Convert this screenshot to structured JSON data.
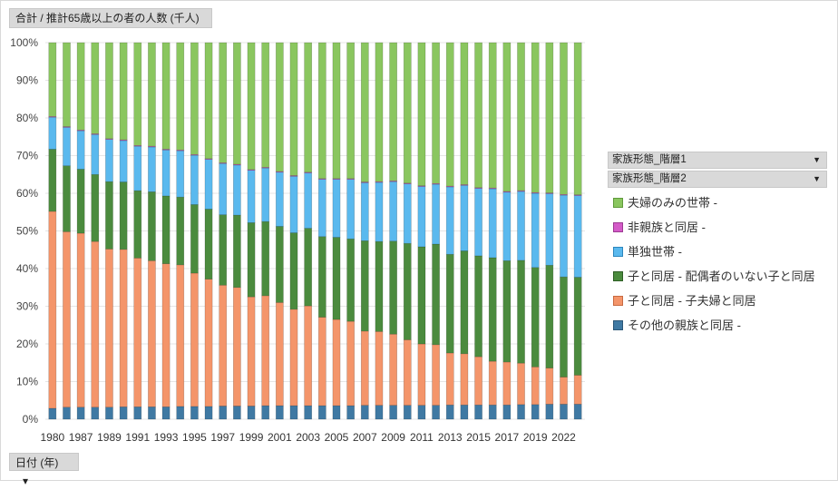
{
  "field_buttons": {
    "value": "合計 / 推計65歳以上の者の人数 (千人)",
    "date": "日付 (年)",
    "date_dropdown": "▾"
  },
  "legend": {
    "header1": "家族形態_階層1",
    "header2": "家族形態_階層2",
    "dropdown_glyph": "▼",
    "items": [
      {
        "label": "夫婦のみの世帯",
        "suffix": " -",
        "color": "#8ac65f",
        "border": "#5f9a3b"
      },
      {
        "label": "非親族と同居",
        "suffix": " -",
        "color": "#d45bc8",
        "border": "#9c3a92"
      },
      {
        "label": "単独世帯",
        "suffix": " -",
        "color": "#5ab9ee",
        "border": "#2c86bd"
      },
      {
        "label": "子と同居",
        "suffix": " - 配偶者のいない子と同居",
        "color": "#4b8b3e",
        "border": "#2e5e25"
      },
      {
        "label": "子と同居",
        "suffix": " - 子夫婦と同居",
        "color": "#f4956a",
        "border": "#c86a41"
      },
      {
        "label": "その他の親族と同居",
        "suffix": " -",
        "color": "#3f79a3",
        "border": "#2a5677"
      }
    ]
  },
  "chart_data": {
    "type": "bar",
    "stacked": true,
    "percent": true,
    "title": "",
    "xlabel": "",
    "ylabel": "",
    "ylim": [
      0,
      100
    ],
    "y_ticks": [
      "0%",
      "10%",
      "20%",
      "30%",
      "40%",
      "50%",
      "60%",
      "70%",
      "80%",
      "90%",
      "100%"
    ],
    "categories": [
      "1980",
      "1985",
      "1987",
      "1988",
      "1989",
      "1990",
      "1991",
      "1992",
      "1993",
      "1994",
      "1995",
      "1996",
      "1997",
      "1998",
      "1999",
      "2000",
      "2001",
      "2002",
      "2003",
      "2004",
      "2005",
      "2006",
      "2007",
      "2008",
      "2009",
      "2010",
      "2011",
      "2012",
      "2013",
      "2014",
      "2015",
      "2016",
      "2017",
      "2018",
      "2019",
      "2020",
      "2022",
      "2023"
    ],
    "tick_labels": [
      "1980",
      "1987",
      "1989",
      "1991",
      "1993",
      "1995",
      "1997",
      "1999",
      "2001",
      "2003",
      "2005",
      "2007",
      "2009",
      "2011",
      "2013",
      "2015",
      "2017",
      "2019",
      "2022"
    ],
    "tick_indices": [
      0,
      2,
      4,
      6,
      8,
      10,
      12,
      14,
      16,
      18,
      20,
      22,
      24,
      26,
      28,
      30,
      32,
      34,
      36
    ],
    "series": [
      {
        "name": "その他の親族と同居 -",
        "color": "#3f79a3",
        "values": [
          2.9,
          3.2,
          3.2,
          3.2,
          3.2,
          3.3,
          3.3,
          3.3,
          3.3,
          3.4,
          3.4,
          3.4,
          3.5,
          3.5,
          3.5,
          3.6,
          3.6,
          3.6,
          3.6,
          3.6,
          3.6,
          3.6,
          3.7,
          3.7,
          3.7,
          3.7,
          3.7,
          3.7,
          3.8,
          3.8,
          3.8,
          3.8,
          3.8,
          3.9,
          3.9,
          4.0,
          4.0,
          4.0
        ]
      },
      {
        "name": "子と同居 - 子夫婦と同居",
        "color": "#f4956a",
        "values": [
          52.3,
          46.6,
          46.2,
          44.0,
          42.0,
          41.8,
          39.5,
          38.8,
          38.0,
          37.6,
          35.4,
          33.8,
          32.1,
          31.5,
          29.0,
          29.2,
          27.4,
          25.6,
          26.5,
          23.5,
          22.9,
          22.4,
          19.7,
          19.6,
          18.9,
          17.4,
          16.3,
          16.1,
          13.8,
          13.6,
          12.8,
          11.6,
          11.4,
          11.0,
          10.0,
          9.6,
          7.2,
          7.7
        ]
      },
      {
        "name": "子と同居 - 配偶者のいない子と同居",
        "color": "#4b8b3e",
        "values": [
          16.5,
          17.5,
          17.0,
          17.8,
          17.9,
          17.9,
          17.9,
          18.3,
          18.0,
          18.0,
          18.2,
          18.6,
          18.7,
          19.2,
          19.7,
          19.7,
          20.2,
          20.3,
          20.6,
          21.4,
          21.8,
          21.9,
          24.0,
          23.9,
          24.7,
          25.6,
          25.8,
          26.7,
          26.2,
          27.3,
          26.8,
          27.5,
          26.9,
          27.3,
          26.4,
          27.3,
          26.6,
          26.0
        ]
      },
      {
        "name": "単独世帯 -",
        "color": "#5ab9ee",
        "values": [
          8.5,
          10.2,
          10.2,
          10.6,
          11.2,
          11.0,
          11.8,
          11.9,
          12.2,
          12.3,
          13.1,
          13.2,
          13.6,
          13.3,
          13.9,
          14.2,
          14.4,
          15.0,
          14.7,
          15.2,
          15.4,
          15.8,
          15.4,
          15.7,
          15.8,
          15.8,
          16.0,
          15.9,
          17.9,
          17.4,
          17.9,
          18.3,
          18.2,
          18.3,
          19.7,
          19.0,
          21.7,
          21.7
        ]
      },
      {
        "name": "非親族と同居 -",
        "color": "#d45bc8",
        "values": [
          0.2,
          0.2,
          0.2,
          0.2,
          0.2,
          0.2,
          0.2,
          0.2,
          0.2,
          0.2,
          0.2,
          0.2,
          0.2,
          0.2,
          0.2,
          0.2,
          0.2,
          0.2,
          0.2,
          0.2,
          0.2,
          0.2,
          0.2,
          0.2,
          0.2,
          0.2,
          0.2,
          0.2,
          0.2,
          0.2,
          0.2,
          0.2,
          0.2,
          0.2,
          0.2,
          0.2,
          0.2,
          0.2
        ]
      },
      {
        "name": "夫婦のみの世帯 -",
        "color": "#8ac65f",
        "values": [
          19.6,
          22.3,
          23.2,
          24.2,
          25.5,
          25.8,
          27.3,
          27.5,
          28.3,
          28.5,
          29.7,
          30.8,
          31.9,
          32.3,
          33.7,
          33.1,
          34.2,
          35.3,
          34.4,
          36.1,
          36.1,
          36.1,
          37.0,
          36.9,
          36.7,
          37.3,
          38.0,
          37.4,
          38.1,
          37.7,
          38.5,
          38.6,
          39.5,
          39.3,
          39.8,
          39.9,
          40.3,
          40.4
        ]
      }
    ]
  }
}
